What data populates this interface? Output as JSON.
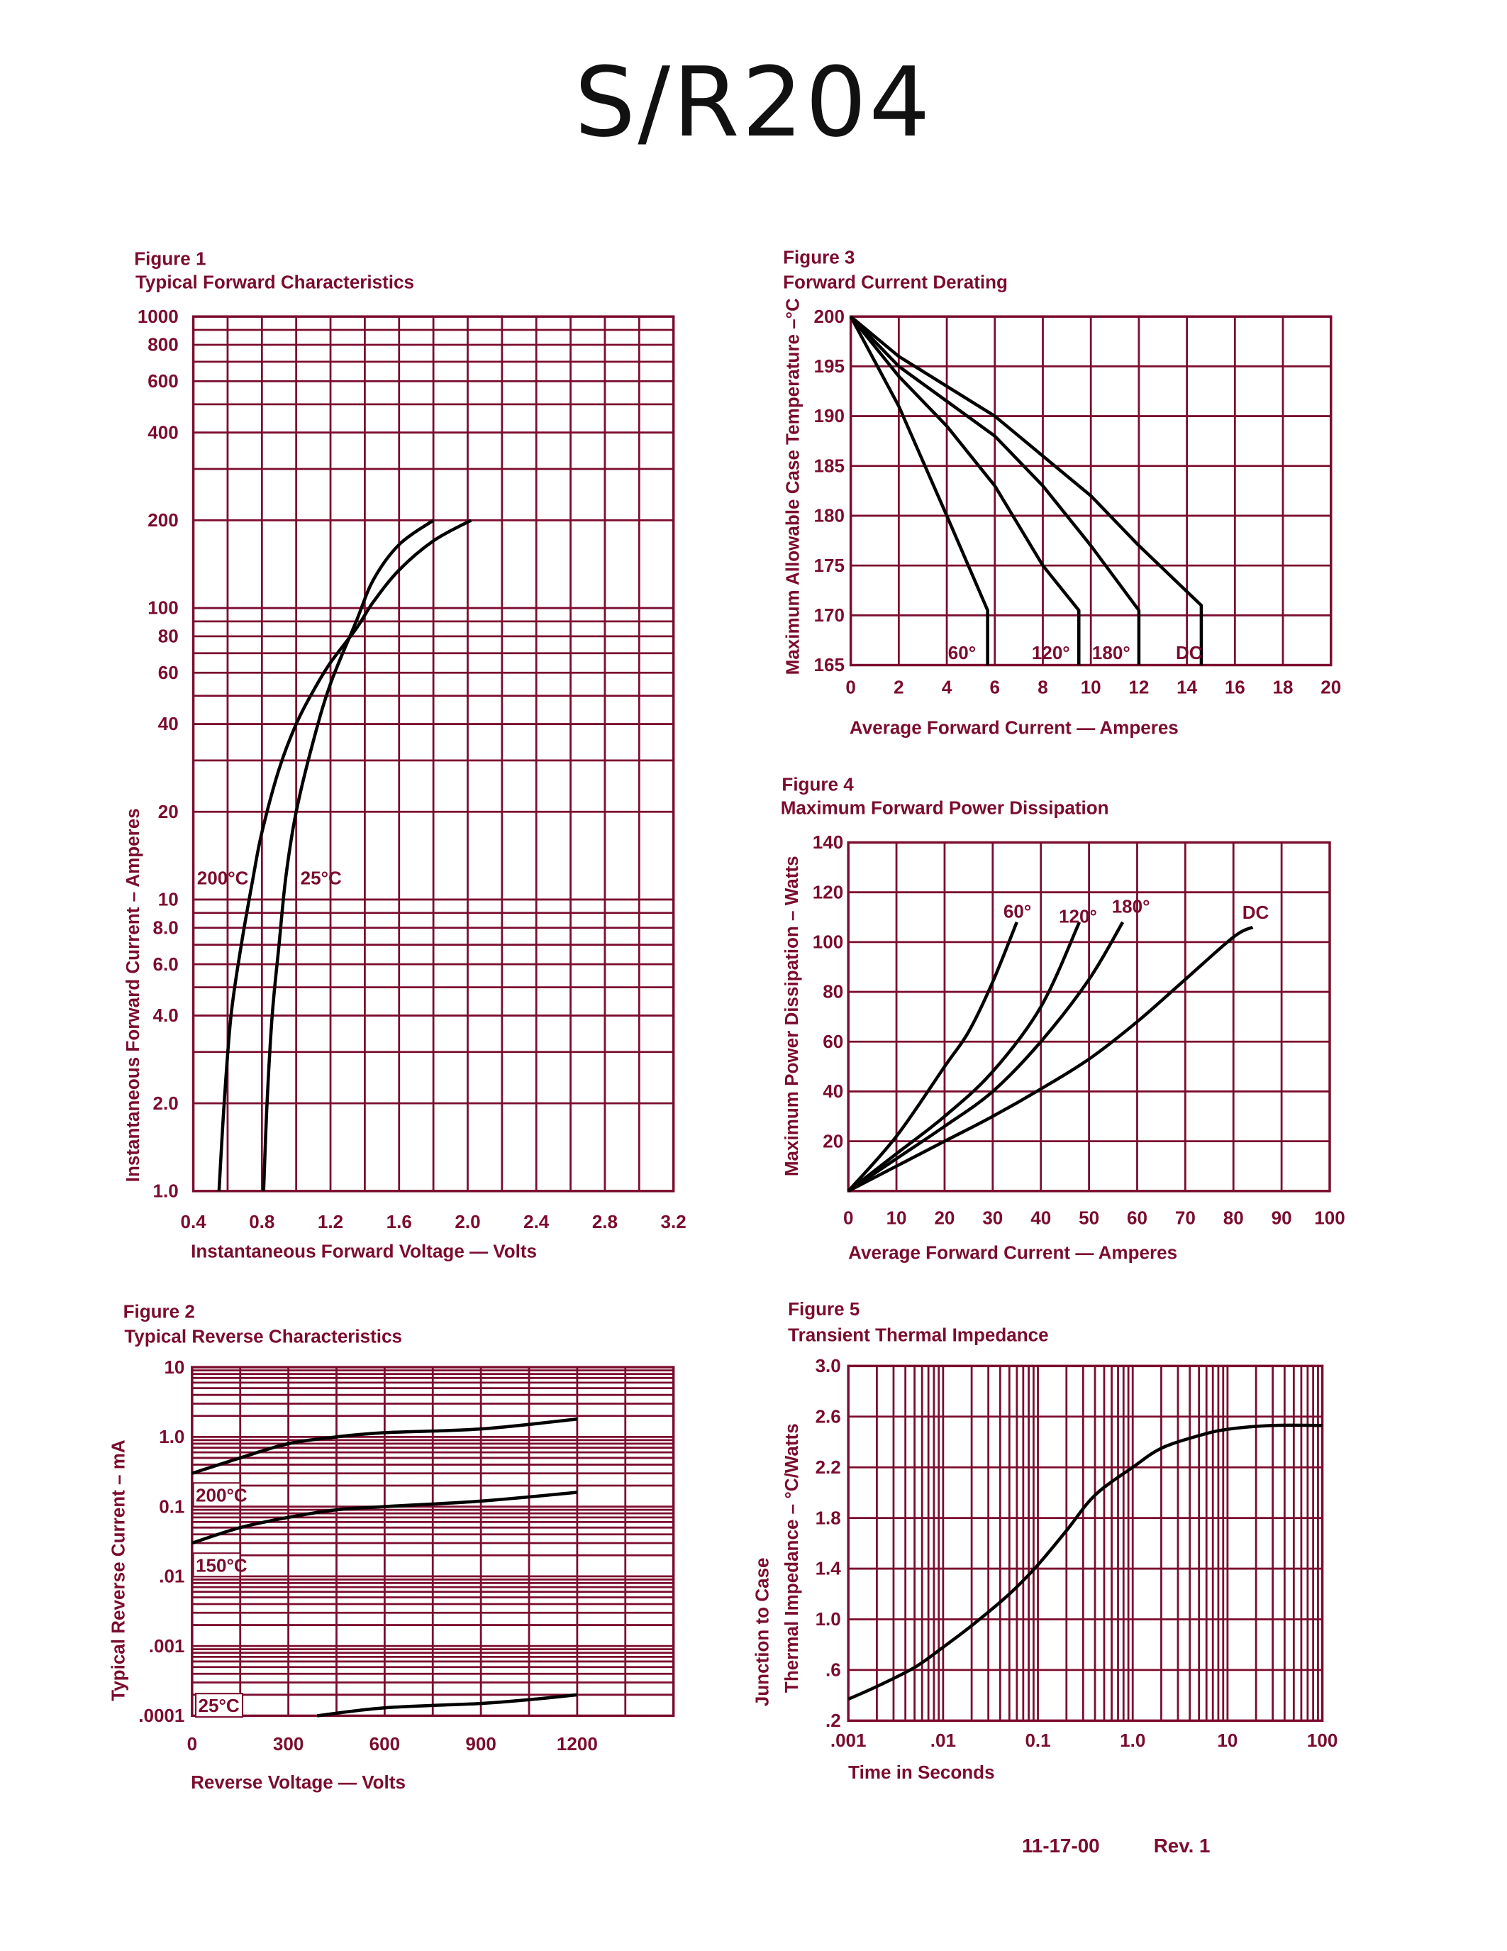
{
  "page": {
    "title": "S/R204",
    "footer_date": "11-17-00",
    "footer_rev": "Rev. 1"
  },
  "colors": {
    "grid": "#7b0c2e",
    "text": "#7b0c2e",
    "curve": "#000000"
  },
  "chart_data": [
    {
      "figure": "Figure 1",
      "title": "Typical Forward Characteristics",
      "type": "line",
      "xlabel": "Instantaneous Forward Voltage — Volts",
      "ylabel": [
        "Instantaneous Forward Current – Amperes"
      ],
      "xscale": "linear",
      "yscale": "log",
      "xlim": [
        0.4,
        3.2
      ],
      "ylim": [
        1,
        1000
      ],
      "grid": true,
      "xticks": [
        {
          "value": 0.4,
          "label": "0.4"
        },
        {
          "value": 0.8,
          "label": "0.8"
        },
        {
          "value": 1.2,
          "label": "1.2"
        },
        {
          "value": 1.6,
          "label": "1.6"
        },
        {
          "value": 2.0,
          "label": "2.0"
        },
        {
          "value": 2.4,
          "label": "2.4"
        },
        {
          "value": 2.8,
          "label": "2.8"
        },
        {
          "value": 3.2,
          "label": "3.2"
        }
      ],
      "yticks": [
        {
          "value": 1,
          "label": "1.0"
        },
        {
          "value": 2,
          "label": "2.0"
        },
        {
          "value": 4,
          "label": "4.0"
        },
        {
          "value": 6,
          "label": "6.0"
        },
        {
          "value": 8,
          "label": "8.0"
        },
        {
          "value": 10,
          "label": "10"
        },
        {
          "value": 20,
          "label": "20"
        },
        {
          "value": 40,
          "label": "40"
        },
        {
          "value": 60,
          "label": "60"
        },
        {
          "value": 80,
          "label": "80"
        },
        {
          "value": 100,
          "label": "100"
        },
        {
          "value": 200,
          "label": "200"
        },
        {
          "value": 400,
          "label": "400"
        },
        {
          "value": 600,
          "label": "600"
        },
        {
          "value": 800,
          "label": "800"
        },
        {
          "value": 1000,
          "label": "1000"
        }
      ],
      "series": [
        {
          "name": "200°C",
          "x": [
            0.55,
            0.58,
            0.62,
            0.68,
            0.75,
            0.8,
            0.9,
            1.0,
            1.1,
            1.2,
            1.35,
            1.45,
            1.6,
            1.8,
            2.02
          ],
          "y": [
            1,
            2,
            4,
            7,
            12,
            17,
            28,
            40,
            52,
            65,
            85,
            105,
            135,
            170,
            200
          ]
        },
        {
          "name": "25°C",
          "x": [
            0.81,
            0.83,
            0.86,
            0.9,
            0.94,
            1.0,
            1.1,
            1.2,
            1.35,
            1.45,
            1.6,
            1.8
          ],
          "y": [
            1,
            2,
            4,
            7,
            12,
            20,
            35,
            55,
            90,
            125,
            165,
            200
          ]
        }
      ]
    },
    {
      "figure": "Figure 2",
      "title": "Typical Reverse Characteristics",
      "type": "line",
      "xlabel": "Reverse Voltage — Volts",
      "ylabel": [
        "Typical Reverse Current – mA"
      ],
      "xscale": "linear",
      "yscale": "log",
      "xlim": [
        0,
        1500
      ],
      "ylim": [
        0.0001,
        10
      ],
      "grid": true,
      "xticks": [
        {
          "value": 0,
          "label": "0"
        },
        {
          "value": 300,
          "label": "300"
        },
        {
          "value": 600,
          "label": "600"
        },
        {
          "value": 900,
          "label": "900"
        },
        {
          "value": 1200,
          "label": "1200"
        }
      ],
      "yticks": [
        {
          "value": 10,
          "label": "10"
        },
        {
          "value": 1,
          "label": "1.0"
        },
        {
          "value": 0.1,
          "label": "0.1"
        },
        {
          "value": 0.01,
          "label": ".01"
        },
        {
          "value": 0.001,
          "label": ".001"
        },
        {
          "value": 0.0001,
          "label": ".0001"
        }
      ],
      "series": [
        {
          "name": "200°C",
          "x": [
            0,
            150,
            300,
            450,
            600,
            900,
            1200
          ],
          "y": [
            0.3,
            0.5,
            0.8,
            1.0,
            1.15,
            1.3,
            1.8
          ]
        },
        {
          "name": "150°C",
          "x": [
            0,
            150,
            300,
            450,
            600,
            900,
            1200
          ],
          "y": [
            0.03,
            0.05,
            0.07,
            0.09,
            0.1,
            0.12,
            0.16
          ]
        },
        {
          "name": "25°C",
          "x": [
            390,
            600,
            900,
            1050,
            1200
          ],
          "y": [
            0.0001,
            0.00013,
            0.00015,
            0.00017,
            0.0002
          ]
        }
      ]
    },
    {
      "figure": "Figure 3",
      "title": "Forward Current Derating",
      "type": "line",
      "xlabel": "Average Forward Current — Amperes",
      "ylabel": [
        "Maximum Allowable Case Temperature –°C"
      ],
      "xscale": "linear",
      "yscale": "linear",
      "xlim": [
        0,
        20
      ],
      "ylim": [
        165,
        200
      ],
      "grid": true,
      "xticks": [
        {
          "value": 0,
          "label": "0"
        },
        {
          "value": 2,
          "label": "2"
        },
        {
          "value": 4,
          "label": "4"
        },
        {
          "value": 6,
          "label": "6"
        },
        {
          "value": 8,
          "label": "8"
        },
        {
          "value": 10,
          "label": "10"
        },
        {
          "value": 12,
          "label": "12"
        },
        {
          "value": 14,
          "label": "14"
        },
        {
          "value": 16,
          "label": "16"
        },
        {
          "value": 18,
          "label": "18"
        },
        {
          "value": 20,
          "label": "20"
        }
      ],
      "yticks": [
        {
          "value": 165,
          "label": "165"
        },
        {
          "value": 170,
          "label": "170"
        },
        {
          "value": 175,
          "label": "175"
        },
        {
          "value": 180,
          "label": "180"
        },
        {
          "value": 185,
          "label": "185"
        },
        {
          "value": 190,
          "label": "190"
        },
        {
          "value": 195,
          "label": "195"
        },
        {
          "value": 200,
          "label": "200"
        }
      ],
      "series": [
        {
          "name": "60°",
          "x": [
            0,
            2,
            4,
            5.7,
            5.7
          ],
          "y": [
            200,
            191,
            180,
            170.5,
            165
          ]
        },
        {
          "name": "120°",
          "x": [
            0,
            2,
            4,
            6,
            8,
            9.5,
            9.5
          ],
          "y": [
            200,
            194,
            189,
            183,
            175,
            170.5,
            165
          ]
        },
        {
          "name": "180°",
          "x": [
            0,
            2,
            4,
            6,
            8,
            10,
            12,
            12
          ],
          "y": [
            200,
            195,
            191.5,
            188,
            183,
            177,
            170.5,
            165
          ]
        },
        {
          "name": "DC",
          "x": [
            0,
            2,
            4,
            6,
            8,
            10,
            12,
            14.6,
            14.6
          ],
          "y": [
            200,
            196,
            193,
            190,
            186,
            182,
            177,
            171,
            165
          ]
        }
      ]
    },
    {
      "figure": "Figure 4",
      "title": "Maximum Forward Power Dissipation",
      "type": "line",
      "xlabel": "Average Forward Current — Amperes",
      "ylabel": [
        "Maximum Power Dissipation – Watts"
      ],
      "xscale": "linear",
      "yscale": "linear",
      "xlim": [
        0,
        100
      ],
      "ylim": [
        0,
        140
      ],
      "grid": true,
      "xticks": [
        {
          "value": 0,
          "label": "0"
        },
        {
          "value": 10,
          "label": "10"
        },
        {
          "value": 20,
          "label": "20"
        },
        {
          "value": 30,
          "label": "30"
        },
        {
          "value": 40,
          "label": "40"
        },
        {
          "value": 50,
          "label": "50"
        },
        {
          "value": 60,
          "label": "60"
        },
        {
          "value": 70,
          "label": "70"
        },
        {
          "value": 80,
          "label": "80"
        },
        {
          "value": 90,
          "label": "90"
        },
        {
          "value": 100,
          "label": "100"
        }
      ],
      "yticks": [
        {
          "value": 20,
          "label": "20"
        },
        {
          "value": 40,
          "label": "40"
        },
        {
          "value": 60,
          "label": "60"
        },
        {
          "value": 80,
          "label": "80"
        },
        {
          "value": 100,
          "label": "100"
        },
        {
          "value": 120,
          "label": "120"
        },
        {
          "value": 140,
          "label": "140"
        }
      ],
      "series": [
        {
          "name": "60°",
          "x": [
            0,
            10,
            20,
            25,
            30,
            35
          ],
          "y": [
            0,
            22,
            50,
            64,
            84,
            108
          ]
        },
        {
          "name": "120°",
          "x": [
            0,
            10,
            20,
            30,
            40,
            48
          ],
          "y": [
            0,
            15,
            30,
            48,
            74,
            108
          ]
        },
        {
          "name": "180°",
          "x": [
            0,
            10,
            20,
            30,
            40,
            50,
            57
          ],
          "y": [
            0,
            13,
            26,
            40,
            60,
            85,
            108
          ]
        },
        {
          "name": "DC",
          "x": [
            0,
            10,
            20,
            30,
            40,
            50,
            60,
            70,
            80,
            84
          ],
          "y": [
            0,
            10,
            20,
            30,
            41,
            53,
            68,
            85,
            102,
            106
          ]
        }
      ]
    },
    {
      "figure": "Figure 5",
      "title": "Transient Thermal Impedance",
      "type": "line",
      "xlabel": "Time in Seconds",
      "ylabel": [
        "Junction to Case",
        "Thermal Impedance – °C/Watts"
      ],
      "xscale": "log",
      "yscale": "linear",
      "xlim": [
        0.001,
        100
      ],
      "ylim": [
        0.2,
        3.0
      ],
      "grid": true,
      "xticks": [
        {
          "value": 0.001,
          "label": ".001"
        },
        {
          "value": 0.01,
          "label": ".01"
        },
        {
          "value": 0.1,
          "label": "0.1"
        },
        {
          "value": 1,
          "label": "1.0"
        },
        {
          "value": 10,
          "label": "10"
        },
        {
          "value": 100,
          "label": "100"
        }
      ],
      "yticks": [
        {
          "value": 0.2,
          "label": ".2"
        },
        {
          "value": 0.6,
          "label": ".6"
        },
        {
          "value": 1.0,
          "label": "1.0"
        },
        {
          "value": 1.4,
          "label": "1.4"
        },
        {
          "value": 1.8,
          "label": "1.8"
        },
        {
          "value": 2.2,
          "label": "2.2"
        },
        {
          "value": 2.6,
          "label": "2.6"
        },
        {
          "value": 3.0,
          "label": "3.0"
        }
      ],
      "series": [
        {
          "x": [
            0.001,
            0.002,
            0.005,
            0.01,
            0.02,
            0.05,
            0.1,
            0.2,
            0.4,
            1,
            2,
            5,
            10,
            30,
            100
          ],
          "y": [
            0.37,
            0.47,
            0.62,
            0.78,
            0.95,
            1.2,
            1.43,
            1.7,
            1.98,
            2.2,
            2.35,
            2.45,
            2.5,
            2.53,
            2.53
          ]
        }
      ]
    }
  ]
}
